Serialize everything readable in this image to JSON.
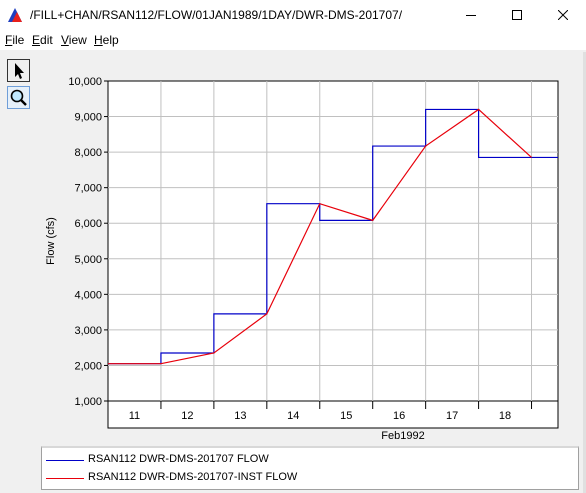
{
  "window": {
    "title": "/FILL+CHAN/RSAN112/FLOW/01JAN1989/1DAY/DWR-DMS-201707/",
    "app_icon": "triangle-chart-icon",
    "controls": [
      "minimize-icon",
      "maximize-icon",
      "close-icon"
    ]
  },
  "menu": {
    "items": [
      {
        "label": "File",
        "mnemonic": "F",
        "rest": "ile"
      },
      {
        "label": "Edit",
        "mnemonic": "E",
        "rest": "dit"
      },
      {
        "label": "View",
        "mnemonic": "V",
        "rest": "iew"
      },
      {
        "label": "Help",
        "mnemonic": "H",
        "rest": "elp"
      }
    ]
  },
  "toolbar": {
    "tools": [
      {
        "icon": "pointer-arrow-icon",
        "active": true
      },
      {
        "icon": "zoom-magnifier-icon",
        "active": false
      }
    ]
  },
  "chart_data": {
    "type": "line",
    "title": "",
    "xlabel": "Feb1992",
    "ylabel": "Flow (cfs)",
    "ylim": [
      1000,
      10000
    ],
    "yticks": [
      1000,
      2000,
      3000,
      4000,
      5000,
      6000,
      7000,
      8000,
      9000,
      10000
    ],
    "ytick_labels": [
      "1,000",
      "2,000",
      "3,000",
      "4,000",
      "5,000",
      "6,000",
      "7,000",
      "8,000",
      "9,000",
      "10,000"
    ],
    "xlim": [
      10.5,
      19.0
    ],
    "x_categories": [
      "11",
      "12",
      "13",
      "14",
      "15",
      "16",
      "17",
      "18"
    ],
    "grid": true,
    "legend_placement": "bottom",
    "series": [
      {
        "name": "RSAN112 DWR-DMS-201707 FLOW",
        "color": "#0000c8",
        "style": "step",
        "x": [
          10.5,
          11.5,
          12.5,
          13.5,
          14.5,
          15.5,
          16.5,
          17.5,
          18.5
        ],
        "values": [
          2050,
          2350,
          3450,
          6550,
          6080,
          8170,
          9200,
          7850,
          7850
        ]
      },
      {
        "name": "RSAN112 DWR-DMS-201707-INST FLOW",
        "color": "#e8000b",
        "style": "line",
        "x": [
          10.5,
          11.5,
          12.5,
          13.5,
          14.5,
          15.5,
          16.5,
          17.5,
          18.5
        ],
        "values": [
          2050,
          2050,
          2350,
          3450,
          6550,
          6080,
          8170,
          9200,
          7850
        ]
      }
    ]
  }
}
